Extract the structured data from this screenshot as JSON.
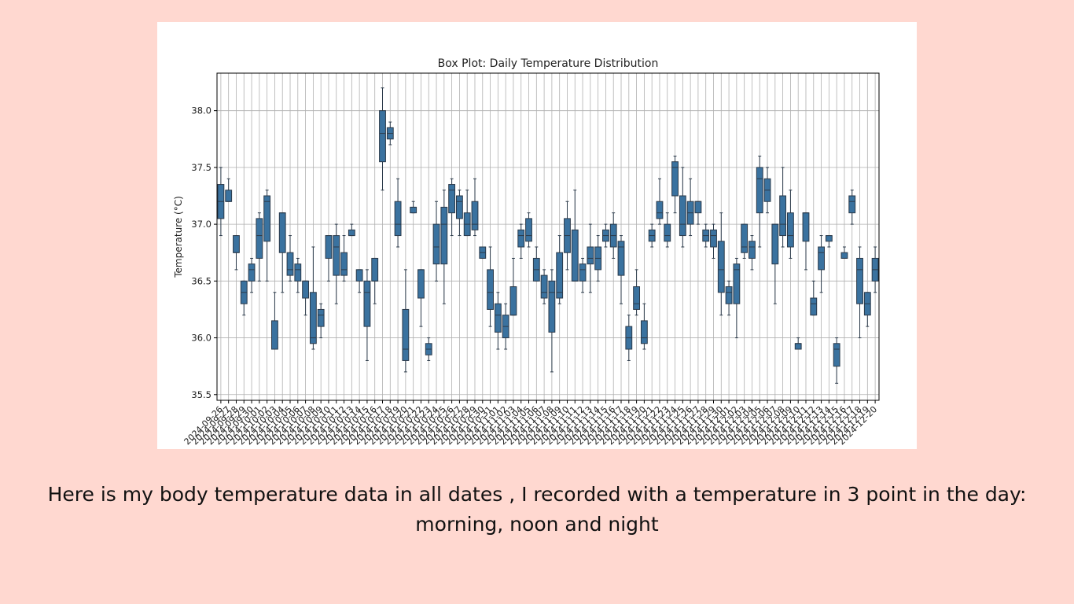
{
  "caption": {
    "line1": "Here is my body temperature data in all dates , I recorded with a temperature in 3 point in the day:",
    "line2": "morning, noon and night"
  },
  "colors": {
    "background": "#FFD8D0",
    "box_fill": "#3A729F",
    "box_edge": "#2B3A4A",
    "grid": "#B0B0B0"
  },
  "chart_data": {
    "type": "box",
    "title": "Box Plot: Daily Temperature Distribution",
    "ylabel": "Temperature (°C)",
    "xlabel": "",
    "ylim": [
      35.45,
      38.33
    ],
    "yticks": [
      35.5,
      36.0,
      36.5,
      37.0,
      37.5,
      38.0
    ],
    "grid": true,
    "start_date": "2024-09-26",
    "x_tick_labels": [
      "2024-09-26",
      "2024-09-27",
      "2024-09-28",
      "2024-09-29",
      "2024-09-30",
      "2024-10-01",
      "2024-10-02",
      "2024-10-03",
      "2024-10-04",
      "2024-10-05",
      "2024-10-06",
      "2024-10-07",
      "2024-10-08",
      "2024-10-09",
      "2024-10-10",
      "2024-10-11",
      "2024-10-12",
      "2024-10-13",
      "2024-10-14",
      "2024-10-15",
      "2024-10-16",
      "2024-10-17",
      "2024-10-18",
      "2024-10-19",
      "2024-10-20",
      "2024-10-21",
      "2024-10-22",
      "2024-10-23",
      "2024-10-24",
      "2024-10-25",
      "2024-10-26",
      "2024-10-27",
      "2024-10-28",
      "2024-10-29",
      "2024-10-30",
      "2024-10-31",
      "2024-11-01",
      "2024-11-02",
      "2024-11-03",
      "2024-11-04",
      "2024-11-05",
      "2024-11-06",
      "2024-11-07",
      "2024-11-08",
      "2024-11-09",
      "2024-11-10",
      "2024-11-11",
      "2024-11-12",
      "2024-11-13",
      "2024-11-14",
      "2024-11-15",
      "2024-11-16",
      "2024-11-17",
      "2024-11-18",
      "2024-11-19",
      "2024-11-20",
      "2024-11-21",
      "2024-11-22",
      "2024-11-23",
      "2024-11-24",
      "2024-11-25",
      "2024-11-26",
      "2024-11-27",
      "2024-11-28",
      "2024-11-29",
      "2024-11-30",
      "2024-12-01",
      "2024-12-02",
      "2024-12-03",
      "2024-12-04",
      "2024-12-05",
      "2024-12-06",
      "2024-12-07",
      "2024-12-08",
      "2024-12-09",
      "2024-12-10",
      "2024-12-11",
      "2024-12-12",
      "2024-12-13",
      "2024-12-14",
      "2024-12-15",
      "2024-12-16",
      "2024-12-17",
      "2024-12-18",
      "2024-12-19",
      "2024-12-20"
    ],
    "boxes": [
      {
        "min": 36.9,
        "q1": 37.05,
        "median": 37.2,
        "q3": 37.35,
        "max": 37.5
      },
      {
        "min": 37.2,
        "q1": 37.2,
        "median": 37.2,
        "q3": 37.3,
        "max": 37.4
      },
      {
        "min": 36.6,
        "q1": 36.75,
        "median": 36.75,
        "q3": 36.9,
        "max": 36.9
      },
      {
        "min": 36.2,
        "q1": 36.3,
        "median": 36.4,
        "q3": 36.5,
        "max": 36.5
      },
      {
        "min": 36.4,
        "q1": 36.5,
        "median": 36.6,
        "q3": 36.65,
        "max": 36.7
      },
      {
        "min": 36.5,
        "q1": 36.7,
        "median": 36.9,
        "q3": 37.05,
        "max": 37.1
      },
      {
        "min": 36.5,
        "q1": 36.85,
        "median": 37.2,
        "q3": 37.25,
        "max": 37.3
      },
      {
        "min": 35.9,
        "q1": 35.9,
        "median": 35.9,
        "q3": 36.15,
        "max": 36.4
      },
      {
        "min": 36.4,
        "q1": 36.75,
        "median": 37.1,
        "q3": 37.1,
        "max": 37.1
      },
      {
        "min": 36.5,
        "q1": 36.55,
        "median": 36.6,
        "q3": 36.75,
        "max": 36.9
      },
      {
        "min": 36.4,
        "q1": 36.5,
        "median": 36.6,
        "q3": 36.65,
        "max": 36.7
      },
      {
        "min": 36.2,
        "q1": 36.35,
        "median": 36.5,
        "q3": 36.5,
        "max": 36.5
      },
      {
        "min": 35.9,
        "q1": 35.95,
        "median": 36.0,
        "q3": 36.4,
        "max": 36.8
      },
      {
        "min": 36.0,
        "q1": 36.1,
        "median": 36.2,
        "q3": 36.25,
        "max": 36.3
      },
      {
        "min": 36.5,
        "q1": 36.7,
        "median": 36.9,
        "q3": 36.9,
        "max": 36.9
      },
      {
        "min": 36.3,
        "q1": 36.55,
        "median": 36.8,
        "q3": 36.9,
        "max": 37.0
      },
      {
        "min": 36.5,
        "q1": 36.55,
        "median": 36.6,
        "q3": 36.75,
        "max": 36.9
      },
      {
        "min": 36.9,
        "q1": 36.9,
        "median": 36.9,
        "q3": 36.95,
        "max": 37.0
      },
      {
        "min": 36.4,
        "q1": 36.5,
        "median": 36.6,
        "q3": 36.6,
        "max": 36.6
      },
      {
        "min": 35.8,
        "q1": 36.1,
        "median": 36.4,
        "q3": 36.5,
        "max": 36.6
      },
      {
        "min": 36.3,
        "q1": 36.5,
        "median": 36.5,
        "q3": 36.7,
        "max": 36.7
      },
      {
        "min": 37.3,
        "q1": 37.55,
        "median": 37.8,
        "q3": 38.0,
        "max": 38.2
      },
      {
        "min": 37.7,
        "q1": 37.75,
        "median": 37.8,
        "q3": 37.85,
        "max": 37.9
      },
      {
        "min": 36.8,
        "q1": 36.9,
        "median": 37.0,
        "q3": 37.2,
        "max": 37.4
      },
      {
        "min": 35.7,
        "q1": 35.8,
        "median": 35.9,
        "q3": 36.25,
        "max": 36.6
      },
      {
        "min": 37.1,
        "q1": 37.1,
        "median": 37.15,
        "q3": 37.15,
        "max": 37.2
      },
      {
        "min": 36.1,
        "q1": 36.35,
        "median": 36.6,
        "q3": 36.6,
        "max": 36.6
      },
      {
        "min": 35.8,
        "q1": 35.85,
        "median": 35.9,
        "q3": 35.95,
        "max": 36.0
      },
      {
        "min": 36.5,
        "q1": 36.65,
        "median": 36.8,
        "q3": 37.0,
        "max": 37.2
      },
      {
        "min": 36.3,
        "q1": 36.65,
        "median": 37.0,
        "q3": 37.15,
        "max": 37.3
      },
      {
        "min": 36.9,
        "q1": 37.1,
        "median": 37.3,
        "q3": 37.35,
        "max": 37.4
      },
      {
        "min": 36.9,
        "q1": 37.05,
        "median": 37.2,
        "q3": 37.25,
        "max": 37.3
      },
      {
        "min": 36.9,
        "q1": 36.9,
        "median": 37.0,
        "q3": 37.1,
        "max": 37.3
      },
      {
        "min": 36.9,
        "q1": 36.95,
        "median": 37.0,
        "q3": 37.2,
        "max": 37.4
      },
      {
        "min": 36.7,
        "q1": 36.7,
        "median": 36.75,
        "q3": 36.8,
        "max": 36.8
      },
      {
        "min": 36.1,
        "q1": 36.25,
        "median": 36.4,
        "q3": 36.6,
        "max": 36.8
      },
      {
        "min": 35.9,
        "q1": 36.05,
        "median": 36.2,
        "q3": 36.3,
        "max": 36.4
      },
      {
        "min": 35.9,
        "q1": 36.0,
        "median": 36.1,
        "q3": 36.2,
        "max": 36.3
      },
      {
        "min": 36.2,
        "q1": 36.2,
        "median": 36.2,
        "q3": 36.45,
        "max": 36.7
      },
      {
        "min": 36.7,
        "q1": 36.8,
        "median": 36.9,
        "q3": 36.95,
        "max": 37.0
      },
      {
        "min": 36.8,
        "q1": 36.85,
        "median": 36.9,
        "q3": 37.05,
        "max": 37.1
      },
      {
        "min": 36.5,
        "q1": 36.5,
        "median": 36.6,
        "q3": 36.7,
        "max": 36.8
      },
      {
        "min": 36.3,
        "q1": 36.35,
        "median": 36.4,
        "q3": 36.55,
        "max": 36.6
      },
      {
        "min": 35.7,
        "q1": 36.05,
        "median": 36.4,
        "q3": 36.5,
        "max": 36.6
      },
      {
        "min": 36.3,
        "q1": 36.35,
        "median": 36.4,
        "q3": 36.75,
        "max": 36.9
      },
      {
        "min": 36.6,
        "q1": 36.75,
        "median": 36.9,
        "q3": 37.05,
        "max": 37.2
      },
      {
        "min": 36.5,
        "q1": 36.5,
        "median": 36.5,
        "q3": 36.95,
        "max": 37.3
      },
      {
        "min": 36.4,
        "q1": 36.5,
        "median": 36.6,
        "q3": 36.65,
        "max": 36.7
      },
      {
        "min": 36.4,
        "q1": 36.65,
        "median": 36.7,
        "q3": 36.8,
        "max": 37.0
      },
      {
        "min": 36.5,
        "q1": 36.6,
        "median": 36.7,
        "q3": 36.8,
        "max": 36.9
      },
      {
        "min": 36.8,
        "q1": 36.85,
        "median": 36.9,
        "q3": 36.95,
        "max": 37.0
      },
      {
        "min": 36.7,
        "q1": 36.8,
        "median": 36.9,
        "q3": 37.0,
        "max": 37.1
      },
      {
        "min": 36.3,
        "q1": 36.55,
        "median": 36.8,
        "q3": 36.85,
        "max": 36.9
      },
      {
        "min": 35.8,
        "q1": 35.9,
        "median": 36.0,
        "q3": 36.1,
        "max": 36.2
      },
      {
        "min": 36.2,
        "q1": 36.25,
        "median": 36.3,
        "q3": 36.45,
        "max": 36.6
      },
      {
        "min": 35.9,
        "q1": 35.95,
        "median": 36.0,
        "q3": 36.15,
        "max": 36.3
      },
      {
        "min": 36.8,
        "q1": 36.85,
        "median": 36.9,
        "q3": 36.95,
        "max": 37.0
      },
      {
        "min": 37.0,
        "q1": 37.05,
        "median": 37.1,
        "q3": 37.2,
        "max": 37.4
      },
      {
        "min": 36.8,
        "q1": 36.85,
        "median": 36.9,
        "q3": 37.0,
        "max": 37.1
      },
      {
        "min": 37.1,
        "q1": 37.25,
        "median": 37.5,
        "q3": 37.55,
        "max": 37.6
      },
      {
        "min": 36.8,
        "q1": 36.9,
        "median": 37.0,
        "q3": 37.25,
        "max": 37.5
      },
      {
        "min": 36.9,
        "q1": 37.0,
        "median": 37.1,
        "q3": 37.2,
        "max": 37.4
      },
      {
        "min": 37.0,
        "q1": 37.1,
        "median": 37.2,
        "q3": 37.2,
        "max": 37.2
      },
      {
        "min": 36.8,
        "q1": 36.85,
        "median": 36.9,
        "q3": 36.95,
        "max": 37.0
      },
      {
        "min": 36.7,
        "q1": 36.8,
        "median": 36.9,
        "q3": 36.95,
        "max": 37.0
      },
      {
        "min": 36.2,
        "q1": 36.4,
        "median": 36.6,
        "q3": 36.85,
        "max": 37.1
      },
      {
        "min": 36.2,
        "q1": 36.3,
        "median": 36.4,
        "q3": 36.45,
        "max": 36.5
      },
      {
        "min": 36.0,
        "q1": 36.3,
        "median": 36.6,
        "q3": 36.65,
        "max": 36.7
      },
      {
        "min": 36.7,
        "q1": 36.75,
        "median": 36.8,
        "q3": 37.0,
        "max": 37.0
      },
      {
        "min": 36.6,
        "q1": 36.7,
        "median": 36.8,
        "q3": 36.85,
        "max": 36.9
      },
      {
        "min": 36.8,
        "q1": 37.1,
        "median": 37.4,
        "q3": 37.5,
        "max": 37.6
      },
      {
        "min": 37.1,
        "q1": 37.2,
        "median": 37.3,
        "q3": 37.4,
        "max": 37.5
      },
      {
        "min": 36.3,
        "q1": 36.65,
        "median": 37.0,
        "q3": 37.0,
        "max": 37.0
      },
      {
        "min": 36.8,
        "q1": 36.9,
        "median": 37.0,
        "q3": 37.25,
        "max": 37.5
      },
      {
        "min": 36.7,
        "q1": 36.8,
        "median": 36.9,
        "q3": 37.1,
        "max": 37.3
      },
      {
        "min": 35.9,
        "q1": 35.9,
        "median": 35.95,
        "q3": 35.95,
        "max": 36.0
      },
      {
        "min": 36.6,
        "q1": 36.85,
        "median": 37.1,
        "q3": 37.1,
        "max": 37.1
      },
      {
        "min": 36.2,
        "q1": 36.2,
        "median": 36.3,
        "q3": 36.35,
        "max": 36.5
      },
      {
        "min": 36.4,
        "q1": 36.6,
        "median": 36.75,
        "q3": 36.8,
        "max": 36.9
      },
      {
        "min": 36.8,
        "q1": 36.85,
        "median": 36.9,
        "q3": 36.9,
        "max": 36.9
      },
      {
        "min": 35.6,
        "q1": 35.75,
        "median": 35.9,
        "q3": 35.95,
        "max": 36.0
      },
      {
        "min": 36.7,
        "q1": 36.7,
        "median": 36.7,
        "q3": 36.75,
        "max": 36.8
      },
      {
        "min": 37.0,
        "q1": 37.1,
        "median": 37.2,
        "q3": 37.25,
        "max": 37.3
      },
      {
        "min": 36.0,
        "q1": 36.3,
        "median": 36.6,
        "q3": 36.7,
        "max": 36.8
      },
      {
        "min": 36.1,
        "q1": 36.2,
        "median": 36.3,
        "q3": 36.4,
        "max": 36.4
      },
      {
        "min": 36.4,
        "q1": 36.5,
        "median": 36.6,
        "q3": 36.7,
        "max": 36.8
      }
    ]
  }
}
